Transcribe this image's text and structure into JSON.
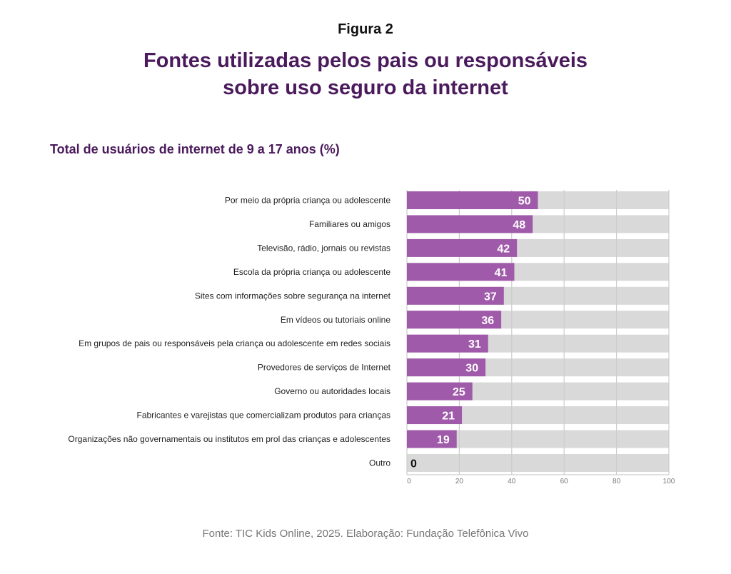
{
  "figure_label": "Figura 2",
  "title_lines": [
    "Fontes utilizadas pelos pais ou responsáveis",
    "sobre uso seguro da internet"
  ],
  "source": "Fonte: TIC Kids Online, 2025. Elaboração: Fundação Telefônica Vivo",
  "colors": {
    "bar": "#a05aaa",
    "track": "#d9d9d9",
    "title": "#4a1a5c",
    "grid": "#cccccc"
  },
  "chart_data": {
    "type": "bar",
    "orientation": "horizontal",
    "title": "Fontes utilizadas pelos pais ou responsáveis sobre uso seguro da internet",
    "subtitle": "Total de usuários de internet de 9 a 17 anos (%)",
    "categories": [
      "Por meio da própria criança ou adolescente",
      "Familiares ou amigos",
      "Televisão, rádio, jornais ou revistas",
      "Escola da própria criança ou adolescente",
      "Sites com informações sobre segurança na internet",
      "Em vídeos ou tutoriais online",
      "Em grupos de pais ou responsáveis pela criança ou adolescente em redes sociais",
      "Provedores de serviços de Internet",
      "Governo ou autoridades locais",
      "Fabricantes e varejistas que comercializam produtos para crianças",
      "Organizações não governamentais ou institutos em prol das crianças e adolescentes",
      "Outro"
    ],
    "values": [
      50,
      48,
      42,
      41,
      37,
      36,
      31,
      30,
      25,
      21,
      19,
      0
    ],
    "xlabel": "",
    "ylabel": "",
    "xlim": [
      0,
      100
    ],
    "xticks": [
      0,
      20,
      40,
      60,
      80,
      100
    ],
    "grid": true,
    "legend": "none",
    "data_labels": true
  }
}
